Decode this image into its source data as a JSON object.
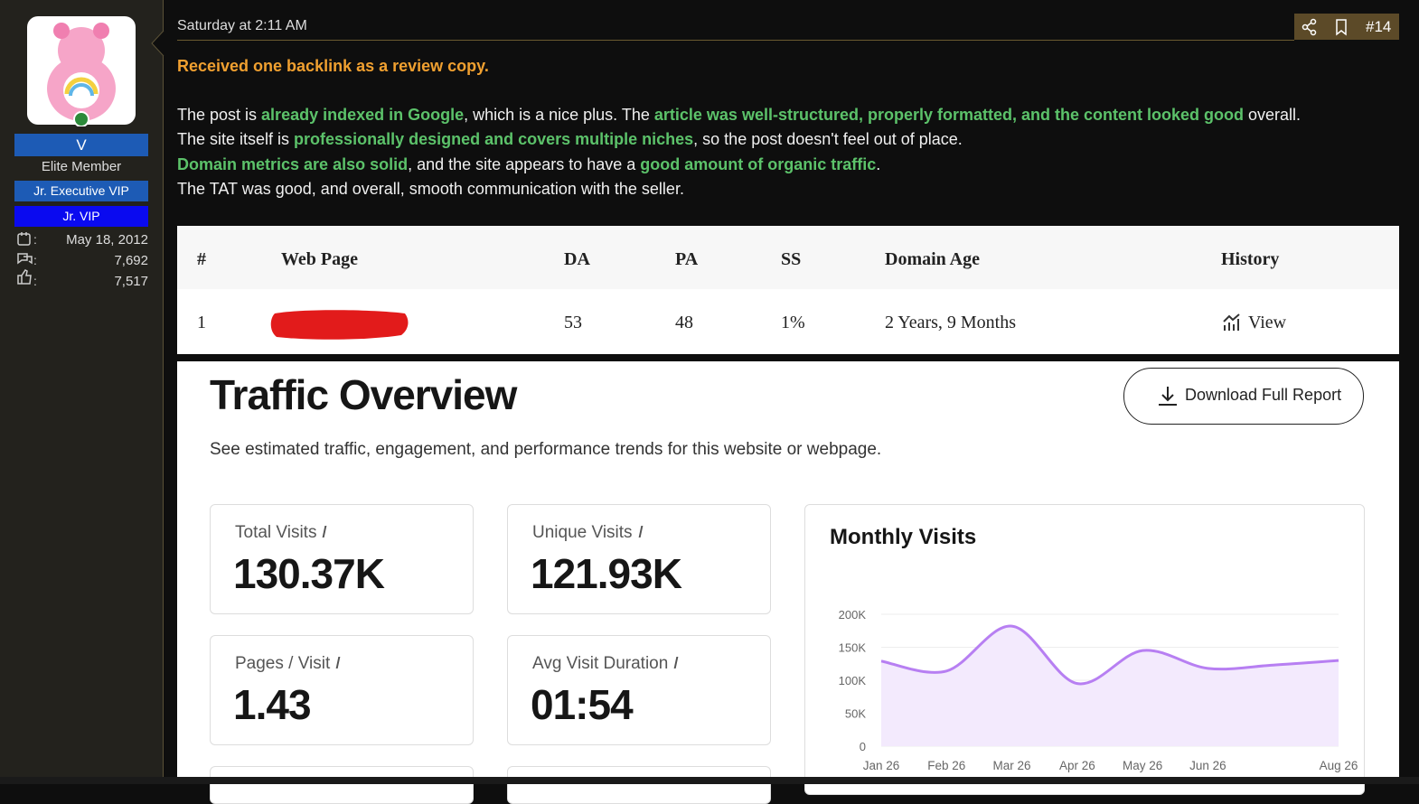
{
  "sidebar": {
    "username": "V",
    "user_title": "Elite Member",
    "banners": [
      "Jr. Executive VIP",
      "Jr. VIP"
    ],
    "stats": [
      "May 18, 2012",
      "7,692",
      "7,517"
    ]
  },
  "post": {
    "date": "Saturday at 2:11 AM",
    "number": "#14",
    "heading": "Received one backlink as a review copy.",
    "lines": [
      [
        {
          "text": "The post is ",
          "highlight": false
        },
        {
          "text": "already indexed in Google",
          "highlight": true
        },
        {
          "text": ", which is a nice plus. The ",
          "highlight": false
        },
        {
          "text": "article was well-structured, properly formatted, and the content looked good",
          "highlight": true
        },
        {
          "text": " overall.",
          "highlight": false
        }
      ],
      [
        {
          "text": "The site itself is ",
          "highlight": false
        },
        {
          "text": "professionally designed and covers multiple niches",
          "highlight": true
        },
        {
          "text": ", so the post doesn't feel out of place.",
          "highlight": false
        }
      ],
      [
        {
          "text": "Domain metrics are also solid",
          "highlight": true
        },
        {
          "text": ", and the site appears to have a ",
          "highlight": false
        },
        {
          "text": "good amount of organic traffic",
          "highlight": true
        },
        {
          "text": ".",
          "highlight": false
        }
      ],
      [
        {
          "text": "The TAT was good, and overall, smooth communication with the seller.",
          "highlight": false
        }
      ]
    ]
  },
  "table": {
    "headers": [
      "#",
      "Web Page",
      "DA",
      "PA",
      "SS",
      "Domain Age",
      "History"
    ],
    "rows": [
      {
        "number": "1",
        "da": "53",
        "pa": "48",
        "ss": "1%",
        "domain_age": "2 Years, 9 Months",
        "history": "View"
      }
    ]
  },
  "report": {
    "title": "Traffic Overview",
    "download": "Download Full Report",
    "subtitle": "See estimated traffic, engagement, and performance trends for this website or webpage.",
    "metrics": [
      {
        "label": "Total Visits",
        "value": "130.37K"
      },
      {
        "label": "Unique Visits",
        "value": "121.93K"
      },
      {
        "label": "Pages / Visit",
        "value": "1.43"
      },
      {
        "label": "Avg Visit Duration",
        "value": "01:54"
      }
    ]
  },
  "chart_data": {
    "type": "area",
    "title": "Monthly Visits",
    "categories": [
      "Jan 26",
      "Feb 26",
      "Mar 26",
      "Apr 26",
      "May 26",
      "Jun 26",
      null,
      "Aug 26"
    ],
    "values": [
      129000,
      114000,
      182000,
      95000,
      145000,
      118000,
      123000,
      130000
    ],
    "color": "#b77ff2",
    "fill": "#f3eafd",
    "ylim": [
      0,
      200000
    ],
    "yticks": [
      0,
      {
        "value": 50000,
        "label": "50K"
      },
      {
        "value": 100000,
        "label": "100K"
      },
      {
        "value": 150000,
        "label": "150K"
      },
      {
        "value": 200000,
        "label": "200K"
      }
    ],
    "grid": true
  }
}
